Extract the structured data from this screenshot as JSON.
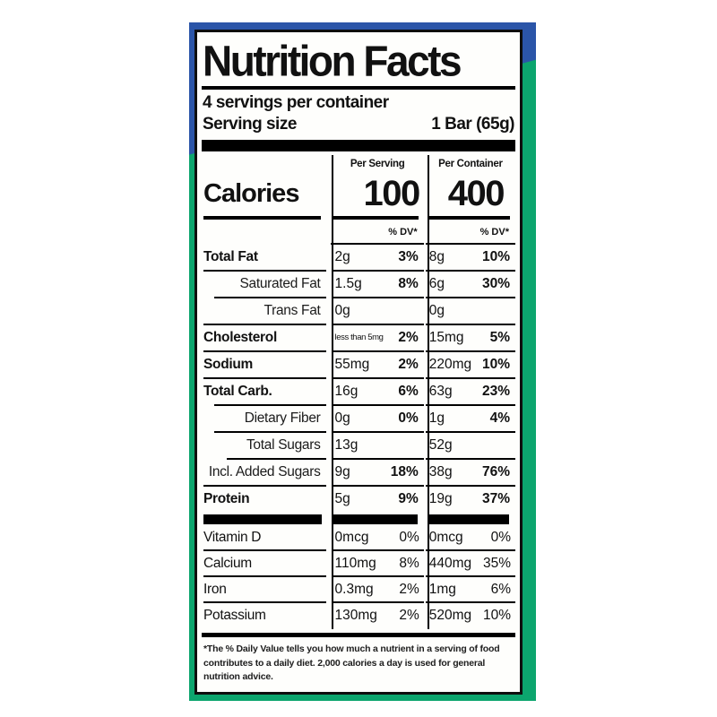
{
  "package": {
    "blue_color": "#2b55a8",
    "green_color": "#0ca56e"
  },
  "label": {
    "title": "Nutrition Facts",
    "servings_per_container": "4 servings per container",
    "serving_size_label": "Serving size",
    "serving_size_value": "1 Bar (65g)",
    "columns": {
      "per_serving": "Per Serving",
      "per_container": "Per Container"
    },
    "calories": {
      "label": "Calories",
      "per_serving": "100",
      "per_container": "400"
    },
    "dv_header": "% DV*",
    "rows": [
      {
        "name": "Total Fat",
        "ps_amt": "2g",
        "ps_dv": "3%",
        "pc_amt": "8g",
        "pc_dv": "10%"
      },
      {
        "name": "Saturated Fat",
        "ps_amt": "1.5g",
        "ps_dv": "8%",
        "pc_amt": "6g",
        "pc_dv": "30%"
      },
      {
        "name": "Trans Fat",
        "ps_amt": "0g",
        "ps_dv": "",
        "pc_amt": "0g",
        "pc_dv": ""
      },
      {
        "name": "Cholesterol",
        "ps_amt": "less than 5mg",
        "ps_dv": "2%",
        "pc_amt": "15mg",
        "pc_dv": "5%"
      },
      {
        "name": "Sodium",
        "ps_amt": "55mg",
        "ps_dv": "2%",
        "pc_amt": "220mg",
        "pc_dv": "10%"
      },
      {
        "name": "Total Carb.",
        "ps_amt": "16g",
        "ps_dv": "6%",
        "pc_amt": "63g",
        "pc_dv": "23%"
      },
      {
        "name": "Dietary Fiber",
        "ps_amt": "0g",
        "ps_dv": "0%",
        "pc_amt": "1g",
        "pc_dv": "4%"
      },
      {
        "name": "Total Sugars",
        "ps_amt": "13g",
        "ps_dv": "",
        "pc_amt": "52g",
        "pc_dv": ""
      },
      {
        "name": "Incl. Added Sugars",
        "ps_amt": "9g",
        "ps_dv": "18%",
        "pc_amt": "38g",
        "pc_dv": "76%"
      },
      {
        "name": "Protein",
        "ps_amt": "5g",
        "ps_dv": "9%",
        "pc_amt": "19g",
        "pc_dv": "37%"
      }
    ],
    "vitamins": [
      {
        "name": "Vitamin D",
        "ps_amt": "0mcg",
        "ps_dv": "0%",
        "pc_amt": "0mcg",
        "pc_dv": "0%"
      },
      {
        "name": "Calcium",
        "ps_amt": "110mg",
        "ps_dv": "8%",
        "pc_amt": "440mg",
        "pc_dv": "35%"
      },
      {
        "name": "Iron",
        "ps_amt": "0.3mg",
        "ps_dv": "2%",
        "pc_amt": "1mg",
        "pc_dv": "6%"
      },
      {
        "name": "Potassium",
        "ps_amt": "130mg",
        "ps_dv": "2%",
        "pc_amt": "520mg",
        "pc_dv": "10%"
      }
    ],
    "footnote": "*The % Daily Value tells you how much a nutrient in a serving of food contributes to a daily diet. 2,000 calories a day is used for general nutrition advice."
  }
}
